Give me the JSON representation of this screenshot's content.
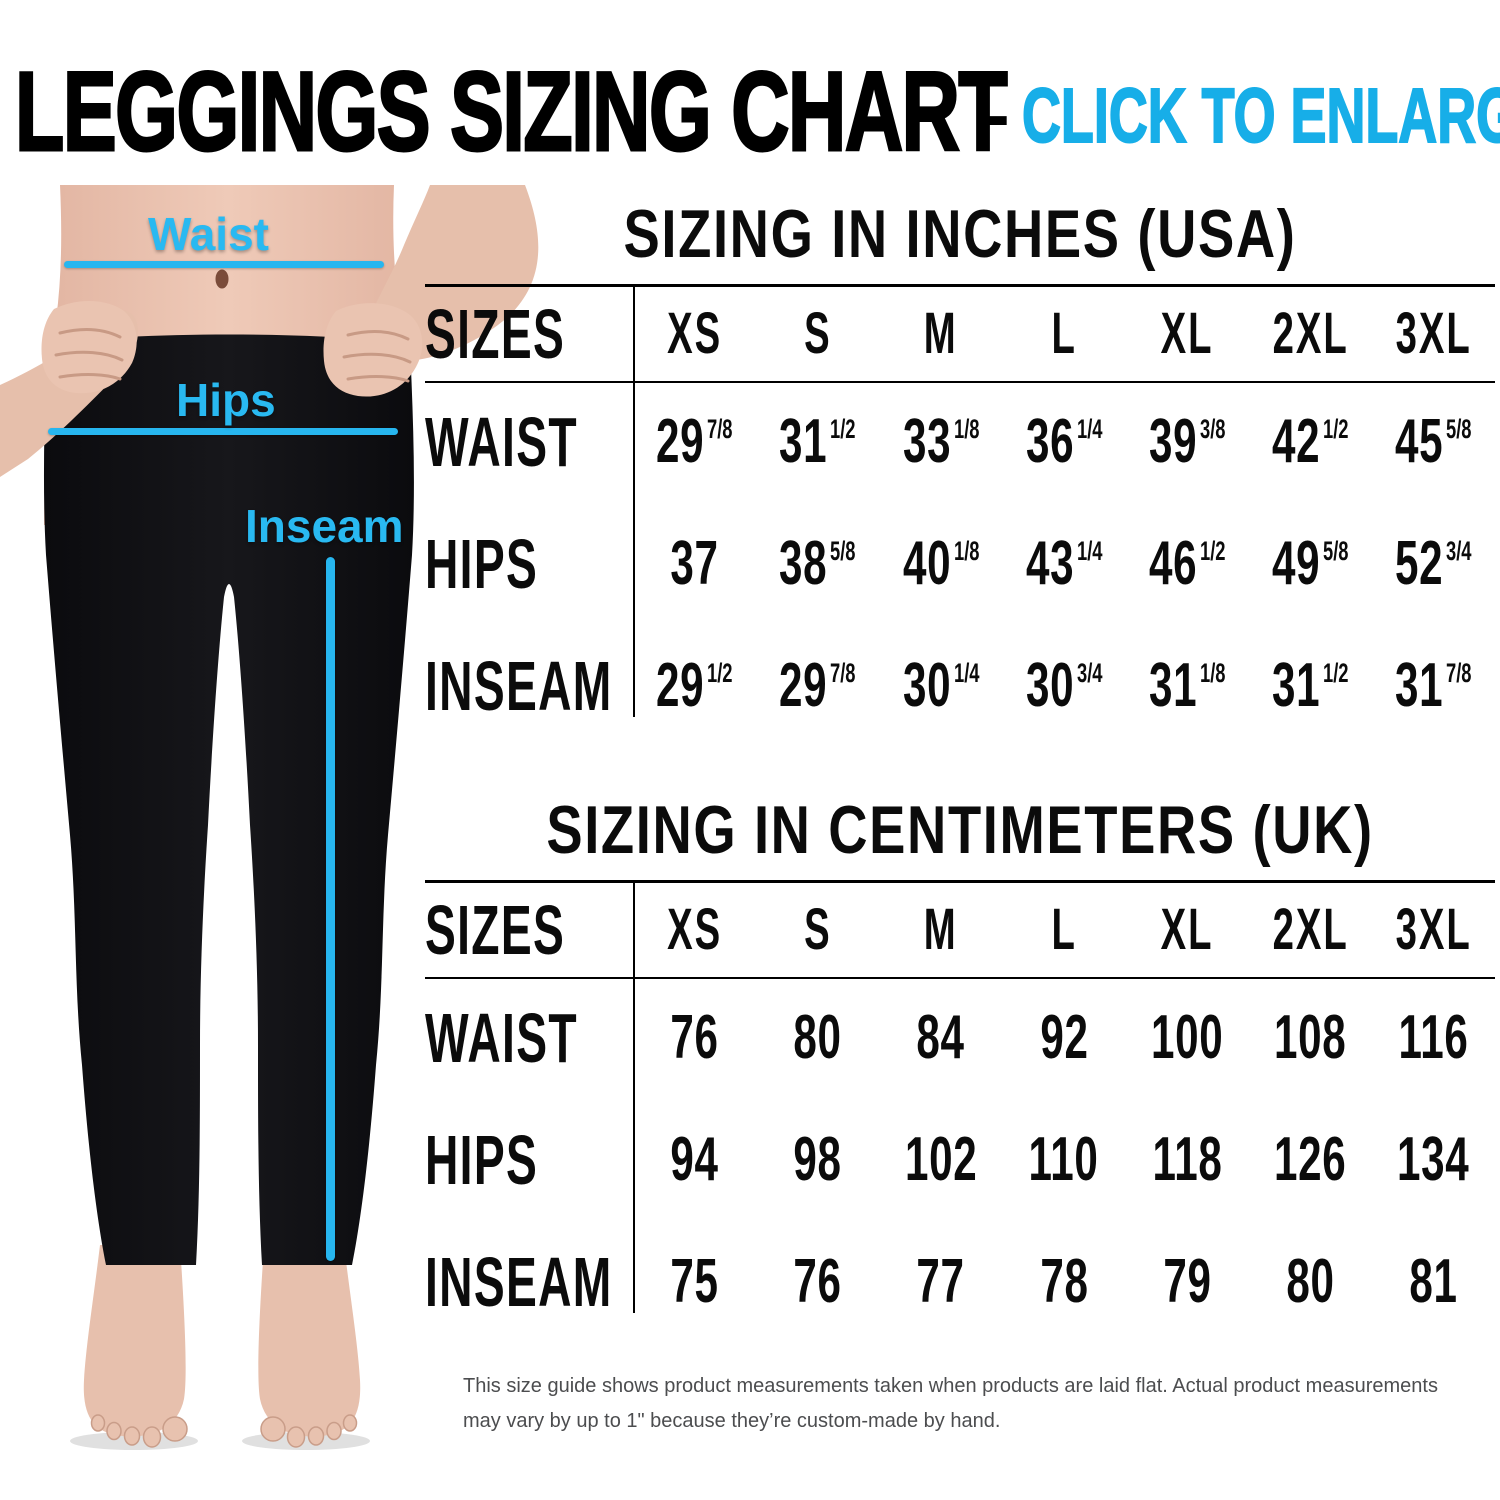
{
  "title": {
    "main": "LEGGINGS SIZING CHART",
    "separator": "-",
    "cta": "CLICK TO ENLARGE"
  },
  "figure": {
    "waist_label": "Waist",
    "hips_label": "Hips",
    "inseam_label": "Inseam"
  },
  "colors": {
    "cta_cyan": "#17aee8",
    "measurement_cyan": "#29b9f1",
    "text_black": "#0b0b0b",
    "disclaimer_gray": "#4c4d4f",
    "leggings_black": "#101013",
    "skin": "#e9c3b1"
  },
  "chart_data": [
    {
      "type": "table",
      "title": "SIZING IN INCHES (USA)",
      "header_label": "SIZES",
      "columns": [
        "XS",
        "S",
        "M",
        "L",
        "XL",
        "2XL",
        "3XL"
      ],
      "rows": [
        {
          "label": "WAIST",
          "values": [
            "29 7/8",
            "31 1/2",
            "33 1/8",
            "36 1/4",
            "39 3/8",
            "42 1/2",
            "45 5/8"
          ]
        },
        {
          "label": "HIPS",
          "values": [
            "37",
            "38 5/8",
            "40 1/8",
            "43 1/4",
            "46 1/2",
            "49 5/8",
            "52 3/4"
          ]
        },
        {
          "label": "INSEAM",
          "values": [
            "29 1/2",
            "29 7/8",
            "30 1/4",
            "30 3/4",
            "31 1/8",
            "31 1/2",
            "31 7/8"
          ]
        }
      ]
    },
    {
      "type": "table",
      "title": "SIZING IN CENTIMETERS (UK)",
      "header_label": "SIZES",
      "columns": [
        "XS",
        "S",
        "M",
        "L",
        "XL",
        "2XL",
        "3XL"
      ],
      "rows": [
        {
          "label": "WAIST",
          "values": [
            "76",
            "80",
            "84",
            "92",
            "100",
            "108",
            "116"
          ]
        },
        {
          "label": "HIPS",
          "values": [
            "94",
            "98",
            "102",
            "110",
            "118",
            "126",
            "134"
          ]
        },
        {
          "label": "INSEAM",
          "values": [
            "75",
            "76",
            "77",
            "78",
            "79",
            "80",
            "81"
          ]
        }
      ]
    }
  ],
  "disclaimer": "This size guide shows product measurements taken when products are laid flat. Actual product measurements may vary by up to 1\" because they’re custom-made by hand."
}
